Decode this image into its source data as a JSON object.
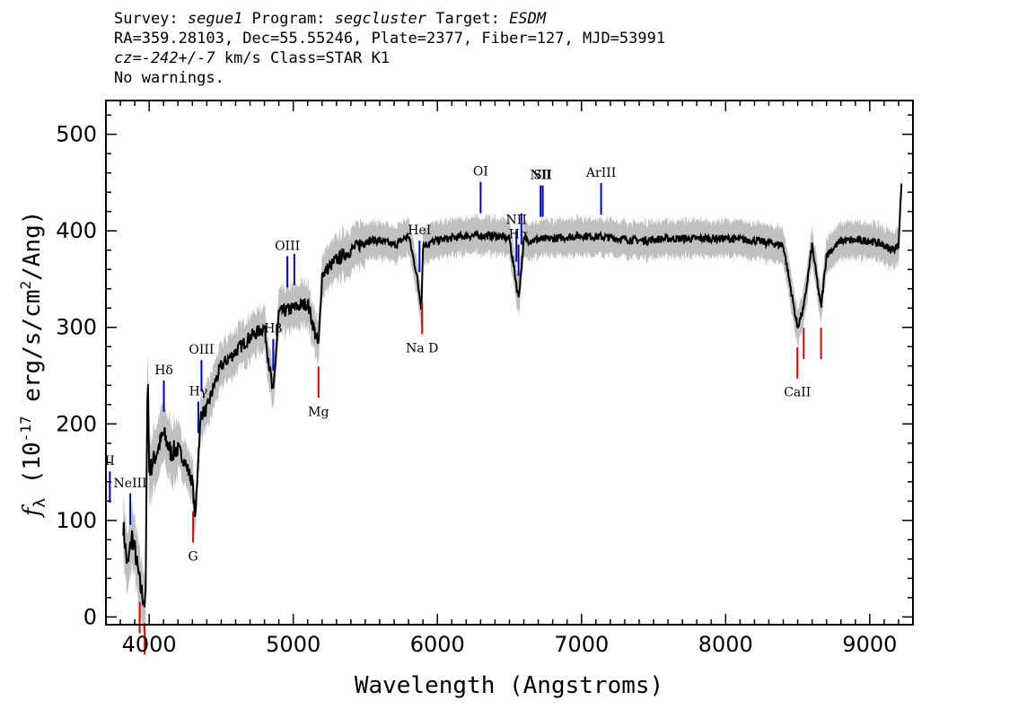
{
  "header": {
    "line1": {
      "survey_label": "Survey: ",
      "survey": "segue1",
      "program_label": " Program: ",
      "program": "segcluster",
      "target_label": " Target: ",
      "target": "ESDM"
    },
    "line2": "RA=359.28103, Dec=55.55246, Plate=2377, Fiber=127, MJD=53991",
    "line3": {
      "cz": "cz=-242+/-7",
      "rest": " km/s Class=STAR K1"
    },
    "line4": "No warnings."
  },
  "chart_data": {
    "type": "line",
    "title": "",
    "xlabel": "Wavelength (Angstroms)",
    "ylabel": "f_λ (10^-17 erg/s/cm^2/Ang)",
    "ylabel_parts": {
      "f": "f",
      "lambda": "λ",
      "unit_open": " (10",
      "exp1": "-17",
      "mid": " erg/s/cm",
      "exp2": "2",
      "unit_close": "/Ang)"
    },
    "xlim": [
      3700,
      9300
    ],
    "ylim": [
      -8,
      535
    ],
    "x_ticks": [
      4000,
      5000,
      6000,
      7000,
      8000,
      9000
    ],
    "x_tick_labels": [
      "4000",
      "5000",
      "6000",
      "7000",
      "8000",
      "9000"
    ],
    "y_ticks": [
      0,
      100,
      200,
      300,
      400,
      500
    ],
    "y_tick_labels": [
      "0",
      "100",
      "200",
      "300",
      "400",
      "500"
    ],
    "flux_series": {
      "name": "flux",
      "x": [
        3820,
        3850,
        3880,
        3900,
        3940,
        3960,
        3975,
        3990,
        4000,
        4050,
        4100,
        4150,
        4200,
        4250,
        4300,
        4320,
        4340,
        4360,
        4400,
        4450,
        4500,
        4600,
        4700,
        4800,
        4860,
        4900,
        5000,
        5100,
        5175,
        5200,
        5300,
        5400,
        5500,
        5600,
        5700,
        5800,
        5850,
        5890,
        5900,
        6000,
        6200,
        6400,
        6500,
        6563,
        6600,
        6800,
        7000,
        7200,
        7400,
        7600,
        7800,
        8000,
        8200,
        8400,
        8498,
        8542,
        8600,
        8662,
        8700,
        8800,
        9000,
        9100,
        9150,
        9200,
        9220
      ],
      "y": [
        95,
        50,
        85,
        70,
        30,
        20,
        10,
        270,
        150,
        170,
        190,
        170,
        175,
        160,
        140,
        100,
        165,
        210,
        215,
        240,
        260,
        275,
        290,
        300,
        230,
        315,
        320,
        325,
        280,
        355,
        370,
        380,
        390,
        390,
        385,
        395,
        360,
        320,
        385,
        390,
        395,
        395,
        392,
        330,
        390,
        392,
        395,
        393,
        390,
        392,
        392,
        392,
        390,
        385,
        300,
        320,
        385,
        320,
        375,
        390,
        390,
        385,
        380,
        385,
        450
      ]
    },
    "emission_lines": [
      {
        "name": "II",
        "wavelength": 3727
      },
      {
        "name": "NeIII",
        "wavelength": 3869
      },
      {
        "name": "Hδ",
        "wavelength": 4102
      },
      {
        "name": "Hγ",
        "wavelength": 4341
      },
      {
        "name": "OIII",
        "wavelength": 4363
      },
      {
        "name": "Hβ",
        "wavelength": 4861
      },
      {
        "name": "OIII",
        "wavelength": 4959
      },
      {
        "name": "",
        "wavelength": 5007
      },
      {
        "name": "HeI",
        "wavelength": 5876
      },
      {
        "name": "OI",
        "wavelength": 6300
      },
      {
        "name": "NII",
        "wavelength": 6548
      },
      {
        "name": "Hα",
        "wavelength": 6563
      },
      {
        "name": "",
        "wavelength": 6583
      },
      {
        "name": "NII",
        "wavelength": 6716
      },
      {
        "name": "SII",
        "wavelength": 6731
      },
      {
        "name": "ArIII",
        "wavelength": 7136
      }
    ],
    "absorption_lines": [
      {
        "name": "",
        "wavelength": 3934
      },
      {
        "name": "",
        "wavelength": 3969
      },
      {
        "name": "G",
        "wavelength": 4305
      },
      {
        "name": "Mg",
        "wavelength": 5175
      },
      {
        "name": "Na D",
        "wavelength": 5894
      },
      {
        "name": "CaII",
        "wavelength": 8498
      },
      {
        "name": "",
        "wavelength": 8542
      },
      {
        "name": "",
        "wavelength": 8662
      }
    ],
    "colors": {
      "flux": "#000000",
      "error_band": "#c0c0c0",
      "emission": "#0000cc",
      "absorption": "#dd0000"
    }
  }
}
